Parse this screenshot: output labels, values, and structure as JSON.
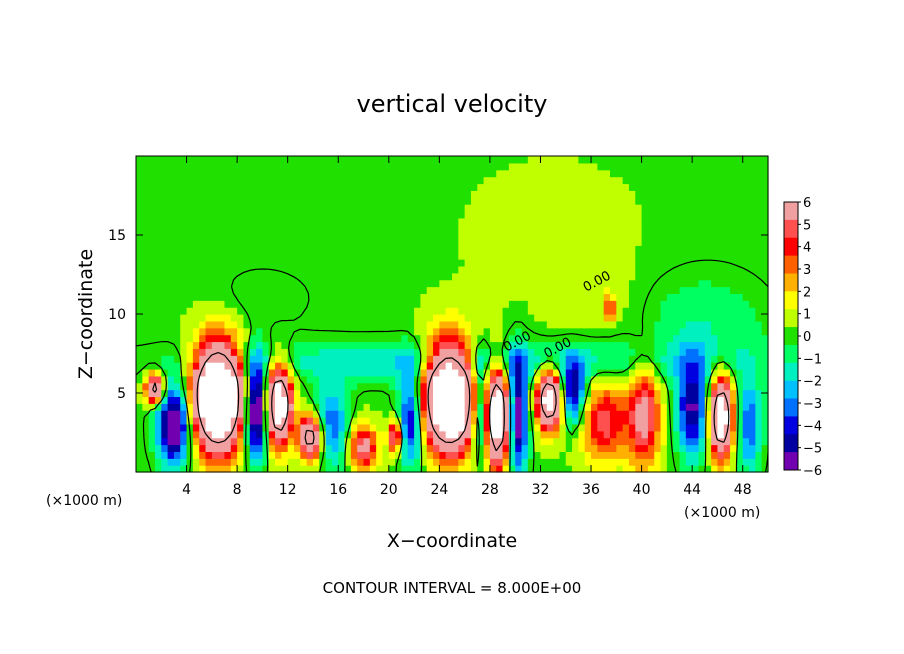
{
  "chart_data": {
    "type": "heatmap",
    "title": "vertical velocity",
    "xlabel": "X−coordinate",
    "ylabel": "Z−coordinate",
    "x_unit_left": "(×1000 m)",
    "x_unit_right": "(×1000 m)",
    "footer": "CONTOUR INTERVAL = 8.000E+00",
    "xlim": [
      0,
      50
    ],
    "ylim": [
      0,
      20
    ],
    "x_ticks": [
      4,
      8,
      12,
      16,
      20,
      24,
      28,
      32,
      36,
      40,
      44,
      48
    ],
    "x_tick_labels": [
      "4",
      "8",
      "12",
      "16",
      "20",
      "24",
      "28",
      "32",
      "36",
      "40",
      "44",
      "48"
    ],
    "y_ticks": [
      5,
      10,
      15
    ],
    "y_tick_labels": [
      "5",
      "10",
      "15"
    ],
    "colorbar": {
      "min": -6,
      "max": 6,
      "tick_labels": [
        "6",
        "5",
        "4",
        "3",
        "2",
        "1",
        "0",
        "−1",
        "−2",
        "−3",
        "−4",
        "−5",
        "−6"
      ],
      "colors": [
        "#f0a0a0",
        "#ff5050",
        "#ff0000",
        "#ff6000",
        "#ffb000",
        "#ffff00",
        "#c0ff00",
        "#20e000",
        "#00ff60",
        "#00f0c0",
        "#00c0ff",
        "#0070ff",
        "#0000e0",
        "#0000a0",
        "#7000b0"
      ]
    },
    "contour_labels": [
      "0.00",
      "0.00",
      "0.00"
    ],
    "features": [
      {
        "x": 6.5,
        "z": 4.8,
        "sx": 1.9,
        "sz": 3.2,
        "w": 18
      },
      {
        "x": 11.3,
        "z": 4.3,
        "sx": 1.0,
        "sz": 2.4,
        "w": 13
      },
      {
        "x": 13.8,
        "z": 2.2,
        "sx": 0.9,
        "sz": 1.3,
        "w": 10
      },
      {
        "x": 18.0,
        "z": 1.6,
        "sx": 1.1,
        "sz": 1.4,
        "w": 6
      },
      {
        "x": 20.5,
        "z": 2.3,
        "sx": 0.5,
        "sz": 1.0,
        "w": 7
      },
      {
        "x": 24.8,
        "z": 4.8,
        "sx": 2.0,
        "sz": 3.2,
        "w": 18
      },
      {
        "x": 28.6,
        "z": 3.5,
        "sx": 0.9,
        "sz": 3.0,
        "w": 13
      },
      {
        "x": 32.7,
        "z": 4.6,
        "sx": 1.0,
        "sz": 1.8,
        "w": 12
      },
      {
        "x": 37.0,
        "z": 3.2,
        "sx": 1.8,
        "sz": 2.5,
        "w": 5
      },
      {
        "x": 40.2,
        "z": 3.6,
        "sx": 1.3,
        "sz": 3.2,
        "w": 6
      },
      {
        "x": 37.5,
        "z": 10.3,
        "sx": 0.35,
        "sz": 0.8,
        "w": 5
      },
      {
        "x": 46.3,
        "z": 3.5,
        "sx": 0.9,
        "sz": 2.4,
        "w": 13
      },
      {
        "x": 1.5,
        "z": 5.3,
        "sx": 0.7,
        "sz": 0.9,
        "w": 10
      },
      {
        "x": 3.0,
        "z": 3.0,
        "sx": 1.3,
        "sz": 2.5,
        "w": -8
      },
      {
        "x": 9.5,
        "z": 4.0,
        "sx": 0.9,
        "sz": 3.0,
        "w": -9
      },
      {
        "x": 15.5,
        "z": 3.0,
        "sx": 1.3,
        "sz": 2.6,
        "w": -4
      },
      {
        "x": 21.8,
        "z": 3.5,
        "sx": 1.0,
        "sz": 3.0,
        "w": -6
      },
      {
        "x": 27.2,
        "z": 4.0,
        "sx": 0.7,
        "sz": 3.0,
        "w": -6
      },
      {
        "x": 30.2,
        "z": 3.5,
        "sx": 0.8,
        "sz": 3.5,
        "w": -7
      },
      {
        "x": 34.6,
        "z": 5.0,
        "sx": 1.0,
        "sz": 2.0,
        "w": -6
      },
      {
        "x": 44.0,
        "z": 4.0,
        "sx": 1.2,
        "sz": 3.0,
        "w": -6
      },
      {
        "x": 48.5,
        "z": 3.0,
        "sx": 1.0,
        "sz": 3.0,
        "w": -4
      },
      {
        "x": 25.0,
        "z": 7.0,
        "sx": 20.0,
        "sz": 1.3,
        "w": -2.5
      },
      {
        "x": 45.0,
        "z": 9.0,
        "sx": 5.0,
        "sz": 3.5,
        "w": -1.5
      },
      {
        "x": 33.0,
        "z": 15.0,
        "sx": 6.0,
        "sz": 4.0,
        "w": 0.6
      },
      {
        "x": 10.0,
        "z": 11.0,
        "sx": 4.0,
        "sz": 2.0,
        "w": -0.7
      },
      {
        "x": 36.0,
        "z": 11.0,
        "sx": 3.0,
        "sz": 2.0,
        "w": 0.8
      }
    ]
  }
}
